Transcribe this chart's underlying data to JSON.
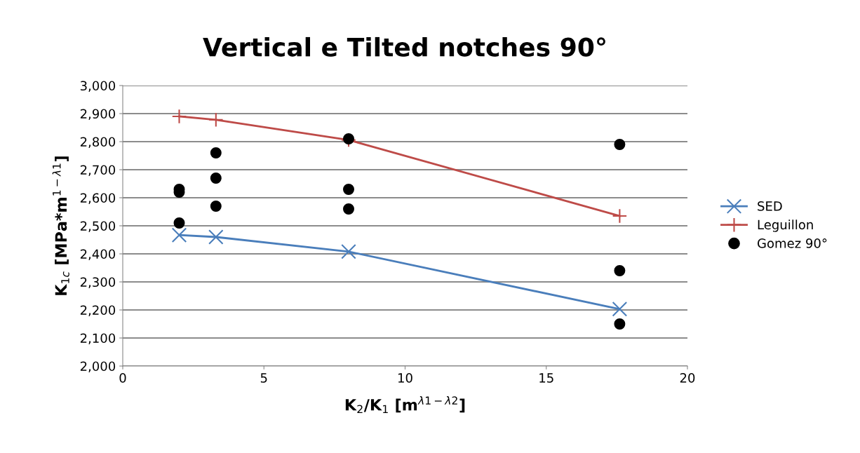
{
  "chart_data": {
    "type": "line",
    "title": "Vertical e Tilted notches 90°",
    "xlabel": "K$_{2}$/K$_{1}$ [m$^{λ1−λ2}$]",
    "ylabel": "K$_{1c}$ [MPa*m$^{1−λ1}$]",
    "xlim": [
      0,
      20
    ],
    "xticks": [
      0,
      5,
      10,
      15,
      20
    ],
    "ylim": [
      2000,
      3000
    ],
    "yticks": [
      {
        "value": 2000,
        "label": "2,000"
      },
      {
        "value": 2100,
        "label": "2,100"
      },
      {
        "value": 2200,
        "label": "2,200"
      },
      {
        "value": 2300,
        "label": "2,300"
      },
      {
        "value": 2400,
        "label": "2,400"
      },
      {
        "value": 2500,
        "label": "2,500"
      },
      {
        "value": 2600,
        "label": "2,600"
      },
      {
        "value": 2700,
        "label": "2,700"
      },
      {
        "value": 2800,
        "label": "2,800"
      },
      {
        "value": 2900,
        "label": "2,900"
      },
      {
        "value": 3000,
        "label": "3,000"
      }
    ],
    "grid": "y",
    "legend": "right",
    "series": [
      {
        "name": "SED",
        "marker": "cross",
        "color": "#4a7ebb",
        "x": [
          2,
          3.3,
          8,
          17.6
        ],
        "values": [
          2467,
          2460,
          2408,
          2203
        ]
      },
      {
        "name": "Leguillon",
        "marker": "plus",
        "color": "#be4b48",
        "x": [
          2,
          3.3,
          8,
          17.6
        ],
        "values": [
          2890,
          2878,
          2806,
          2535
        ]
      },
      {
        "name": "Gomez 90°",
        "type": "scatter",
        "marker": "circle",
        "color": "#000000",
        "x": [
          2,
          2,
          2,
          3.3,
          3.3,
          3.3,
          8,
          8,
          8,
          17.6,
          17.6,
          17.6
        ],
        "values": [
          2630,
          2620,
          2510,
          2760,
          2670,
          2570,
          2810,
          2630,
          2560,
          2790,
          2340,
          2150
        ]
      }
    ]
  }
}
